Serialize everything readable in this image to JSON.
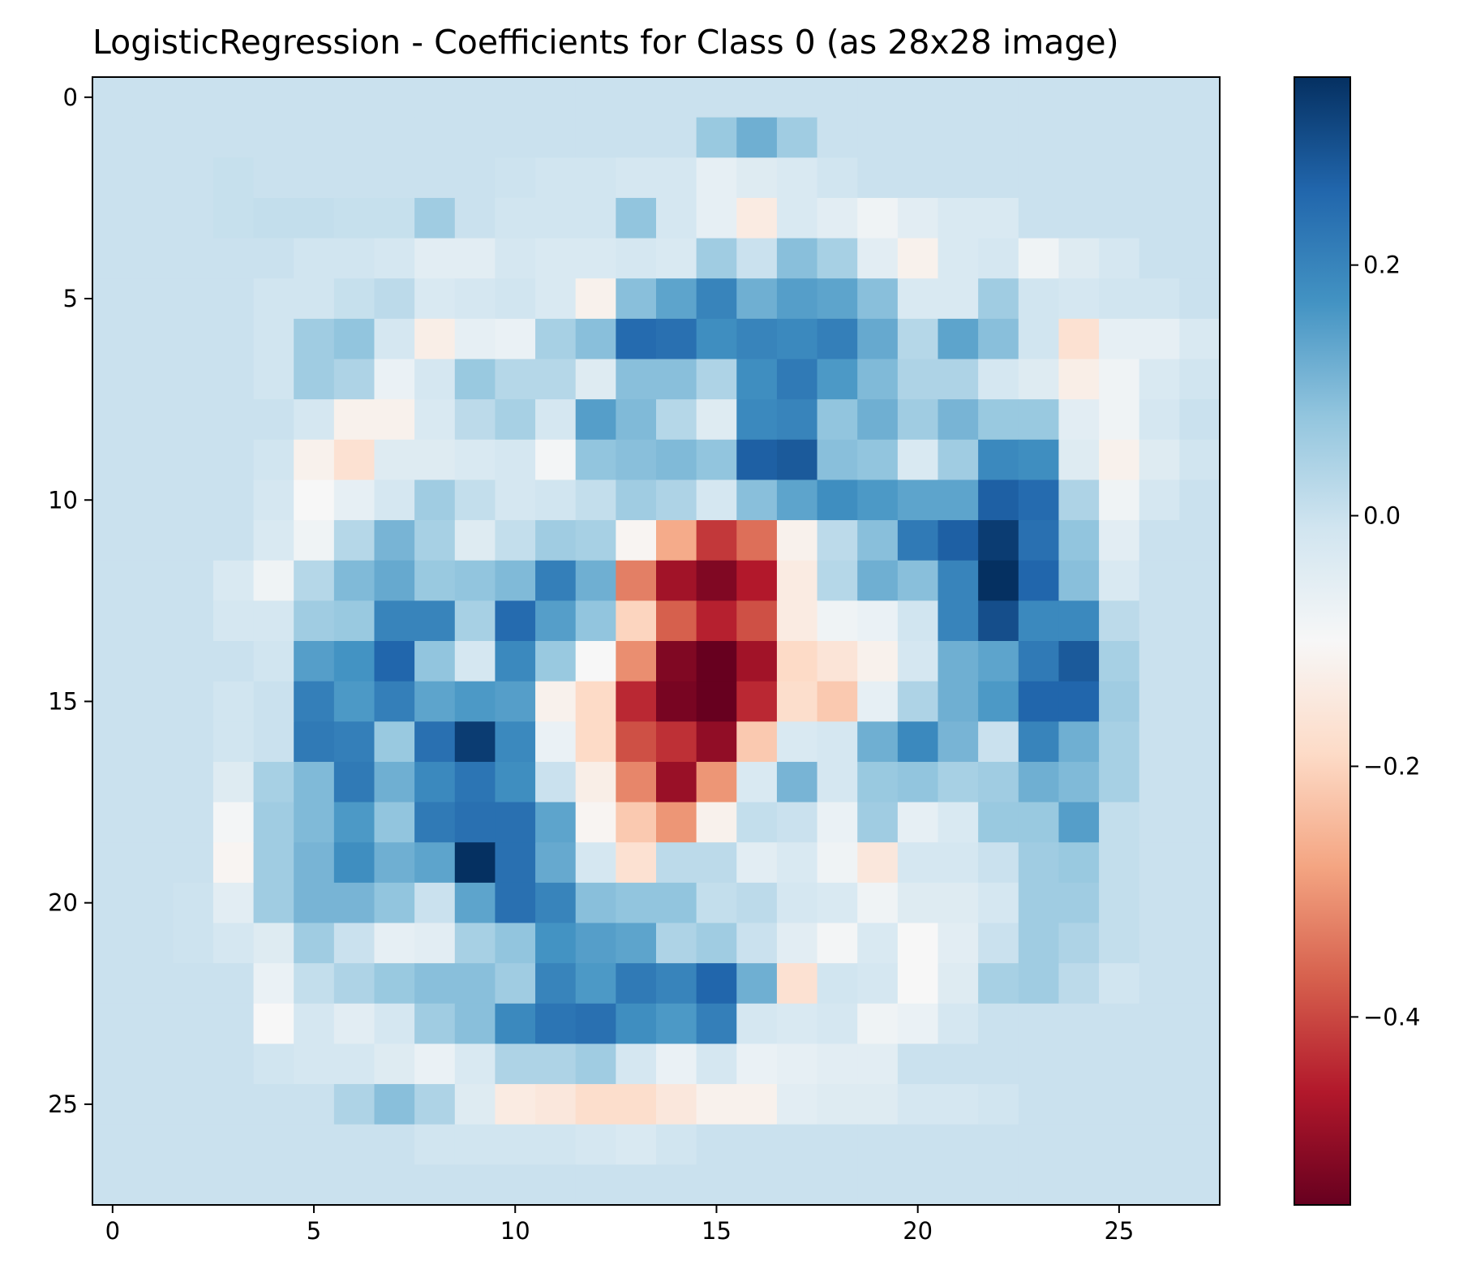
{
  "chart_data": {
    "type": "heatmap",
    "title": "LogisticRegression - Coefficients for Class 0 (as 28x28 image)",
    "xlabel": "",
    "ylabel": "",
    "rows": 28,
    "cols": 28,
    "xticks": [
      0,
      5,
      10,
      15,
      20,
      25
    ],
    "yticks": [
      0,
      5,
      10,
      15,
      20,
      25
    ],
    "colormap": "RdBu",
    "colorbar": {
      "vmin": -0.55,
      "vmax": 0.35,
      "ticks": [
        0.2,
        0.0,
        -0.2,
        -0.4
      ],
      "tick_labels": [
        "0.2",
        "0.0",
        "−0.2",
        "−0.4"
      ]
    },
    "grid": false,
    "values": [
      [
        0,
        0,
        0,
        0,
        0,
        0,
        0,
        0,
        0,
        0,
        0,
        0,
        0,
        0,
        0,
        0,
        0,
        0,
        0,
        0,
        0,
        0,
        0,
        0,
        0,
        0,
        0,
        0
      ],
      [
        0,
        0,
        0,
        0,
        0,
        0,
        0,
        0,
        0,
        0,
        0,
        0,
        0,
        0,
        0,
        0.07,
        0.12,
        0.06,
        0,
        0,
        0,
        0,
        0,
        0,
        0,
        0,
        0,
        0
      ],
      [
        0,
        0,
        0,
        0.005,
        0,
        0,
        0,
        0,
        0,
        0,
        -0.005,
        -0.01,
        -0.01,
        -0.02,
        -0.02,
        -0.06,
        -0.04,
        -0.03,
        -0.01,
        0,
        0,
        0,
        0,
        0,
        0,
        0,
        0,
        0
      ],
      [
        0,
        0,
        0,
        0.005,
        0.01,
        0.01,
        0.005,
        0.005,
        0.06,
        0,
        -0.01,
        -0.01,
        -0.01,
        0.08,
        -0.02,
        -0.06,
        -0.14,
        -0.03,
        -0.05,
        -0.08,
        -0.05,
        -0.03,
        -0.03,
        0,
        0,
        0,
        0,
        0
      ],
      [
        0,
        0,
        0,
        0,
        0,
        -0.01,
        -0.01,
        -0.02,
        -0.05,
        -0.05,
        -0.02,
        -0.03,
        -0.03,
        -0.02,
        -0.03,
        0.06,
        0,
        0.09,
        0.05,
        -0.05,
        -0.12,
        -0.03,
        -0.02,
        -0.08,
        -0.04,
        -0.02,
        0,
        0
      ],
      [
        0,
        0,
        0,
        0,
        -0.01,
        -0.01,
        0.005,
        0.02,
        -0.03,
        -0.02,
        -0.01,
        -0.03,
        -0.12,
        0.09,
        0.14,
        0.2,
        0.12,
        0.15,
        0.14,
        0.09,
        -0.03,
        -0.03,
        0.06,
        -0.01,
        -0.02,
        -0.01,
        -0.01,
        0
      ],
      [
        0,
        0,
        0,
        0,
        -0.01,
        0.06,
        0.08,
        -0.02,
        -0.13,
        -0.06,
        -0.07,
        0.05,
        0.09,
        0.25,
        0.24,
        0.18,
        0.2,
        0.19,
        0.21,
        0.13,
        0.03,
        0.14,
        0.09,
        -0.01,
        -0.17,
        -0.06,
        -0.06,
        -0.03
      ],
      [
        0,
        0,
        0,
        0,
        -0.01,
        0.06,
        0.04,
        -0.07,
        -0.02,
        0.07,
        0.03,
        0.03,
        -0.04,
        0.09,
        0.09,
        0.04,
        0.18,
        0.22,
        0.16,
        0.1,
        0.04,
        0.04,
        -0.02,
        -0.04,
        -0.13,
        -0.08,
        -0.03,
        -0.01
      ],
      [
        0,
        0,
        0,
        0,
        0,
        -0.02,
        -0.12,
        -0.12,
        -0.03,
        0.02,
        0.05,
        -0.02,
        0.15,
        0.1,
        0.03,
        -0.04,
        0.19,
        0.2,
        0.08,
        0.12,
        0.06,
        0.11,
        0.07,
        0.07,
        -0.05,
        -0.08,
        -0.02,
        0
      ],
      [
        0,
        0,
        0,
        0,
        -0.01,
        -0.12,
        -0.17,
        -0.04,
        -0.04,
        -0.03,
        -0.02,
        -0.09,
        0.08,
        0.09,
        0.1,
        0.08,
        0.27,
        0.28,
        0.09,
        0.08,
        -0.03,
        0.06,
        0.19,
        0.18,
        -0.04,
        -0.12,
        -0.04,
        -0.01
      ],
      [
        0,
        0,
        0,
        0,
        -0.02,
        -0.1,
        -0.06,
        -0.02,
        0.06,
        0.01,
        -0.02,
        -0.01,
        0.01,
        0.06,
        0.04,
        -0.02,
        0.09,
        0.14,
        0.18,
        0.16,
        0.14,
        0.14,
        0.27,
        0.25,
        0.04,
        -0.08,
        -0.02,
        0
      ],
      [
        0,
        0,
        0,
        0,
        -0.03,
        -0.08,
        0.03,
        0.11,
        0.05,
        -0.04,
        0.01,
        0.06,
        0.05,
        -0.11,
        -0.27,
        -0.42,
        -0.35,
        -0.12,
        0.02,
        0.09,
        0.22,
        0.27,
        0.33,
        0.24,
        0.08,
        -0.05,
        0,
        0
      ],
      [
        0,
        0,
        0,
        -0.03,
        -0.08,
        0.03,
        0.1,
        0.13,
        0.07,
        0.08,
        0.1,
        0.21,
        0.12,
        -0.33,
        -0.48,
        -0.52,
        -0.46,
        -0.14,
        0.03,
        0.12,
        0.09,
        0.2,
        0.37,
        0.26,
        0.09,
        -0.03,
        0,
        0
      ],
      [
        0,
        0,
        0,
        -0.02,
        -0.02,
        0.06,
        0.07,
        0.2,
        0.2,
        0.05,
        0.25,
        0.15,
        0.08,
        -0.2,
        -0.37,
        -0.45,
        -0.39,
        -0.14,
        -0.08,
        -0.07,
        -0.01,
        0.2,
        0.3,
        0.19,
        0.19,
        0.02,
        0,
        0
      ],
      [
        0,
        0,
        0,
        0,
        -0.01,
        0.15,
        0.17,
        0.26,
        0.08,
        -0.02,
        0.19,
        0.07,
        -0.1,
        -0.31,
        -0.52,
        -0.55,
        -0.48,
        -0.19,
        -0.16,
        -0.12,
        -0.02,
        0.12,
        0.14,
        0.22,
        0.28,
        0.05,
        0,
        0
      ],
      [
        0,
        0,
        0,
        -0.01,
        0,
        0.21,
        0.16,
        0.21,
        0.14,
        0.16,
        0.15,
        -0.12,
        -0.19,
        -0.44,
        -0.53,
        -0.56,
        -0.44,
        -0.18,
        -0.22,
        -0.06,
        0.04,
        0.12,
        0.16,
        0.26,
        0.26,
        0.06,
        0,
        0
      ],
      [
        0,
        0,
        0,
        -0.01,
        0,
        0.22,
        0.21,
        0.07,
        0.24,
        0.33,
        0.19,
        -0.07,
        -0.19,
        -0.39,
        -0.43,
        -0.5,
        -0.22,
        -0.03,
        -0.02,
        0.12,
        0.19,
        0.11,
        0,
        0.2,
        0.12,
        0.05,
        0,
        0
      ],
      [
        0,
        0,
        0,
        -0.04,
        0.05,
        0.1,
        0.22,
        0.12,
        0.19,
        0.23,
        0.18,
        0,
        -0.13,
        -0.32,
        -0.49,
        -0.3,
        -0.03,
        0.11,
        -0.02,
        0.07,
        0.08,
        0.05,
        0.06,
        0.12,
        0.1,
        0.05,
        0,
        0
      ],
      [
        0,
        0,
        0,
        -0.09,
        0.06,
        0.1,
        0.16,
        0.08,
        0.22,
        0.24,
        0.24,
        0.14,
        -0.11,
        -0.22,
        -0.3,
        -0.12,
        0.01,
        0,
        -0.07,
        0.06,
        -0.06,
        -0.03,
        0.07,
        0.07,
        0.15,
        0.01,
        0,
        0
      ],
      [
        0,
        0,
        0,
        -0.11,
        0.06,
        0.11,
        0.18,
        0.12,
        0.14,
        0.35,
        0.24,
        0.13,
        -0.02,
        -0.17,
        0.02,
        0.02,
        -0.05,
        -0.03,
        -0.08,
        -0.15,
        -0.02,
        -0.02,
        0,
        0.06,
        0.07,
        0.01,
        0,
        0
      ],
      [
        0,
        0,
        -0.005,
        -0.05,
        0.06,
        0.11,
        0.11,
        0.08,
        0,
        0.14,
        0.24,
        0.2,
        0.09,
        0.08,
        0.08,
        0.01,
        0.02,
        -0.02,
        -0.03,
        -0.08,
        -0.04,
        -0.04,
        -0.02,
        0.06,
        0.06,
        0.01,
        0,
        0
      ],
      [
        0,
        0,
        -0.005,
        -0.02,
        -0.04,
        0.06,
        0,
        -0.06,
        -0.05,
        0.05,
        0.08,
        0.17,
        0.15,
        0.14,
        0.04,
        0.06,
        0,
        -0.05,
        -0.09,
        -0.03,
        -0.1,
        -0.05,
        0,
        0.06,
        0.04,
        0.01,
        0,
        0
      ],
      [
        0,
        0,
        0,
        0,
        -0.07,
        0.01,
        0.04,
        0.07,
        0.09,
        0.09,
        0.06,
        0.2,
        0.16,
        0.22,
        0.2,
        0.26,
        0.12,
        -0.17,
        -0.01,
        -0.02,
        -0.1,
        -0.04,
        0.05,
        0.06,
        0.02,
        -0.01,
        0,
        0
      ],
      [
        0,
        0,
        0,
        0,
        -0.1,
        -0.02,
        -0.05,
        -0.02,
        0.06,
        0.09,
        0.19,
        0.23,
        0.24,
        0.18,
        0.16,
        0.21,
        -0.02,
        -0.03,
        -0.02,
        -0.08,
        -0.07,
        -0.02,
        0,
        0,
        0,
        0,
        0,
        0
      ],
      [
        0,
        0,
        0,
        0,
        -0.01,
        -0.02,
        -0.02,
        -0.04,
        -0.07,
        -0.03,
        0.04,
        0.04,
        0.06,
        -0.02,
        -0.07,
        -0.02,
        -0.07,
        -0.06,
        -0.05,
        -0.05,
        0,
        0,
        0,
        0,
        0,
        0,
        0,
        0
      ],
      [
        0,
        0,
        0,
        0,
        0,
        0,
        0.04,
        0.09,
        0.04,
        -0.04,
        -0.14,
        -0.15,
        -0.18,
        -0.18,
        -0.15,
        -0.12,
        -0.12,
        -0.05,
        -0.04,
        -0.04,
        -0.02,
        -0.02,
        -0.01,
        0,
        0,
        0,
        0,
        0
      ],
      [
        0,
        0,
        0,
        0,
        0,
        0,
        0,
        0,
        -0.01,
        -0.01,
        -0.01,
        -0.01,
        -0.02,
        -0.03,
        -0.01,
        0,
        0,
        0,
        0,
        0,
        0,
        0,
        0,
        0,
        0,
        0,
        0,
        0
      ],
      [
        0,
        0,
        0,
        0,
        0,
        0,
        0,
        0,
        0,
        0,
        0,
        0,
        0,
        0,
        0,
        0,
        0,
        0,
        0,
        0,
        0,
        0,
        0,
        0,
        0,
        0,
        0,
        0
      ]
    ]
  }
}
